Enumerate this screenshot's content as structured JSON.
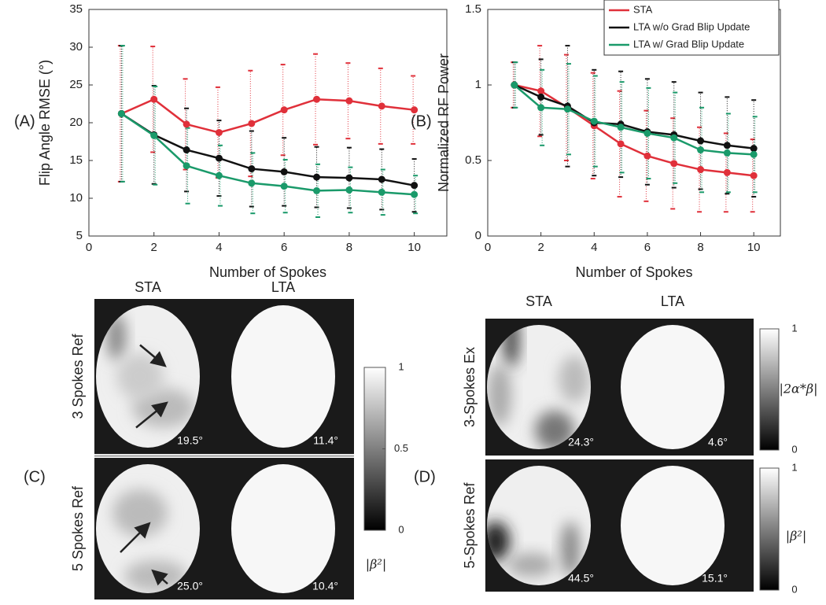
{
  "chart_data": [
    {
      "type": "line",
      "panel_label": "(A)",
      "xlabel": "Number of Spokes",
      "ylabel": "Flip Angle RMSE (°)",
      "x": [
        1,
        2,
        3,
        4,
        5,
        6,
        7,
        8,
        9,
        10
      ],
      "xlim": [
        0,
        11
      ],
      "xticks": [
        0,
        2,
        4,
        6,
        8,
        10
      ],
      "ylim": [
        5,
        35
      ],
      "yticks": [
        5,
        10,
        15,
        20,
        25,
        30,
        35
      ],
      "series": [
        {
          "color": "#e0303a",
          "values": [
            21.2,
            23.1,
            19.8,
            18.7,
            19.9,
            21.7,
            23.1,
            22.9,
            22.2,
            21.7
          ],
          "errors": [
            9,
            7,
            6,
            6,
            7,
            6,
            6,
            5,
            5,
            4.5
          ]
        },
        {
          "color": "#111111",
          "values": [
            21.2,
            18.4,
            16.4,
            15.3,
            13.9,
            13.5,
            12.8,
            12.7,
            12.5,
            11.7
          ],
          "errors": [
            9,
            6.5,
            5.5,
            5,
            5,
            4.5,
            4,
            4,
            4,
            3.5
          ]
        },
        {
          "color": "#1a9a6a",
          "values": [
            21.2,
            18.3,
            14.3,
            13.0,
            12.0,
            11.6,
            11.0,
            11.1,
            10.8,
            10.5
          ],
          "errors": [
            9,
            6.5,
            5,
            4,
            4,
            3.5,
            3.5,
            3,
            3,
            2.5
          ]
        }
      ]
    },
    {
      "type": "line",
      "panel_label": "(B)",
      "xlabel": "Number of Spokes",
      "ylabel": "Normalized RF Power",
      "x": [
        1,
        2,
        3,
        4,
        5,
        6,
        7,
        8,
        9,
        10
      ],
      "xlim": [
        0,
        11
      ],
      "xticks": [
        0,
        2,
        4,
        6,
        8,
        10
      ],
      "ylim": [
        0,
        1.5
      ],
      "yticks": [
        0,
        0.5,
        1,
        1.5
      ],
      "legend": "upper right",
      "series": [
        {
          "name": "STA",
          "color": "#e0303a",
          "values": [
            1.0,
            0.96,
            0.85,
            0.73,
            0.61,
            0.53,
            0.48,
            0.44,
            0.42,
            0.4
          ],
          "errors": [
            0.15,
            0.3,
            0.35,
            0.35,
            0.35,
            0.3,
            0.3,
            0.28,
            0.26,
            0.24
          ]
        },
        {
          "name": "LTA w/o Grad Blip Update",
          "color": "#111111",
          "values": [
            1.0,
            0.92,
            0.86,
            0.75,
            0.74,
            0.69,
            0.67,
            0.63,
            0.6,
            0.58
          ],
          "errors": [
            0.15,
            0.25,
            0.4,
            0.35,
            0.35,
            0.35,
            0.35,
            0.32,
            0.32,
            0.32
          ]
        },
        {
          "name": "LTA w/ Grad Blip Update",
          "color": "#1a9a6a",
          "values": [
            1.0,
            0.85,
            0.84,
            0.76,
            0.72,
            0.68,
            0.65,
            0.57,
            0.55,
            0.54
          ],
          "errors": [
            0.15,
            0.25,
            0.3,
            0.3,
            0.3,
            0.3,
            0.3,
            0.28,
            0.26,
            0.25
          ]
        }
      ]
    }
  ],
  "image_panels": [
    {
      "label": "(C)",
      "columns": [
        "STA",
        "LTA"
      ],
      "rows": [
        {
          "label": "3 Spokes Ref",
          "values": [
            "19.5°",
            "11.4°"
          ]
        },
        {
          "label": "5 Spokes Ref",
          "values": [
            "25.0°",
            "10.4°"
          ]
        }
      ],
      "colorbars": [
        {
          "label": "|β²|",
          "ticks": [
            0,
            0.5,
            1
          ]
        }
      ]
    },
    {
      "label": "(D)",
      "columns": [
        "STA",
        "LTA"
      ],
      "rows": [
        {
          "label": "3-Spokes Ex",
          "values": [
            "24.3°",
            "4.6°"
          ]
        },
        {
          "label": "5-Spokes Ref",
          "values": [
            "44.5°",
            "15.1°"
          ]
        }
      ],
      "colorbars": [
        {
          "label": "|2α*β|",
          "ticks": [
            0,
            1
          ]
        },
        {
          "label": "|β²|",
          "ticks": [
            0,
            1
          ]
        }
      ]
    }
  ]
}
